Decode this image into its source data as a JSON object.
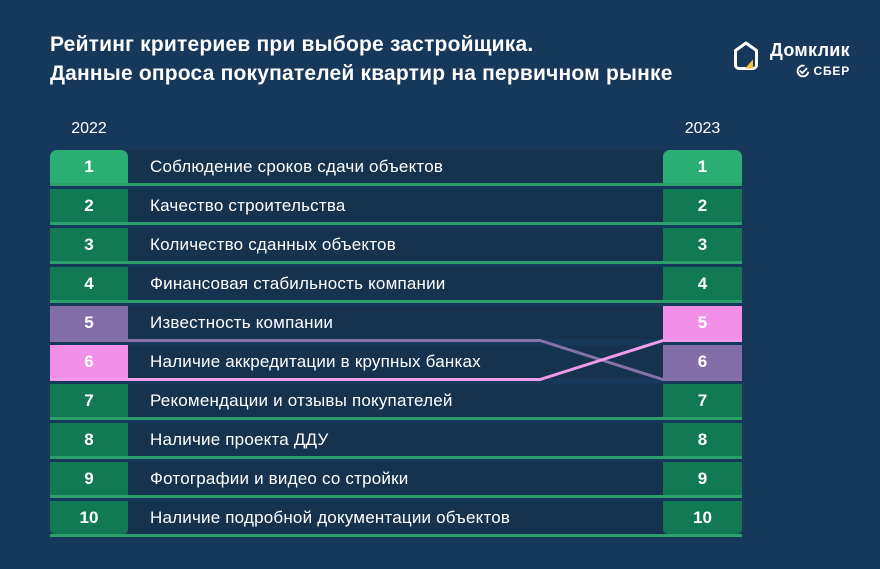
{
  "title": {
    "line1": "Рейтинг критериев при выборе застройщика.",
    "line2": "Данные опроса покупателей квартир на первичном рынке"
  },
  "logo": {
    "brand": "Домклик",
    "sub": "СБЕР"
  },
  "columns": {
    "left_year": "2022",
    "right_year": "2023"
  },
  "colors": {
    "bg": "#16395B",
    "cell": "#15334F",
    "green_bright": "#2BAE73",
    "green": "#117A54",
    "green_line": "#2CA06C",
    "purple": "#826DA9",
    "purple_line": "#8672A9",
    "pink": "#F28FE9",
    "pink_line": "#F19BEC",
    "text": "#FFFFFF",
    "accent_yellow": "#F5C242"
  },
  "rows": [
    {
      "left_rank": "1",
      "label": "Соблюдение сроков сдачи объектов",
      "right_rank": "1",
      "left_style": "bright",
      "right_style": "bright",
      "connector": "green"
    },
    {
      "left_rank": "2",
      "label": "Качество строительства",
      "right_rank": "2",
      "left_style": "green",
      "right_style": "green",
      "connector": "green"
    },
    {
      "left_rank": "3",
      "label": "Количество сданных объектов",
      "right_rank": "3",
      "left_style": "green",
      "right_style": "green",
      "connector": "green"
    },
    {
      "left_rank": "4",
      "label": "Финансовая стабильность компании",
      "right_rank": "4",
      "left_style": "green",
      "right_style": "green",
      "connector": "green"
    },
    {
      "left_rank": "5",
      "label": "Известность компании",
      "right_rank": "5",
      "left_style": "purple",
      "right_style": "pink",
      "connector": "cross"
    },
    {
      "left_rank": "6",
      "label": "Наличие аккредитации в крупных банках",
      "right_rank": "6",
      "left_style": "pink",
      "right_style": "purple",
      "connector": "cross"
    },
    {
      "left_rank": "7",
      "label": "Рекомендации и отзывы покупателей",
      "right_rank": "7",
      "left_style": "green",
      "right_style": "green",
      "connector": "green"
    },
    {
      "left_rank": "8",
      "label": "Наличие проекта ДДУ",
      "right_rank": "8",
      "left_style": "green",
      "right_style": "green",
      "connector": "green"
    },
    {
      "left_rank": "9",
      "label": "Фотографии и видео со стройки",
      "right_rank": "9",
      "left_style": "green",
      "right_style": "green",
      "connector": "green"
    },
    {
      "left_rank": "10",
      "label": "Наличие подробной документации объектов",
      "right_rank": "10",
      "left_style": "green",
      "right_style": "green",
      "connector": "green"
    }
  ],
  "chart_data": {
    "type": "table",
    "title": "Рейтинг критериев при выборе застройщика. Данные опроса покупателей квартир на первичном рынке",
    "years": [
      "2022",
      "2023"
    ],
    "items": [
      {
        "label": "Соблюдение сроков сдачи объектов",
        "rank_2022": 1,
        "rank_2023": 1
      },
      {
        "label": "Качество строительства",
        "rank_2022": 2,
        "rank_2023": 2
      },
      {
        "label": "Количество сданных объектов",
        "rank_2022": 3,
        "rank_2023": 3
      },
      {
        "label": "Финансовая стабильность компании",
        "rank_2022": 4,
        "rank_2023": 4
      },
      {
        "label": "Известность компании",
        "rank_2022": 5,
        "rank_2023": 6
      },
      {
        "label": "Наличие аккредитации в крупных банках",
        "rank_2022": 6,
        "rank_2023": 5
      },
      {
        "label": "Рекомендации и отзывы покупателей",
        "rank_2022": 7,
        "rank_2023": 7
      },
      {
        "label": "Наличие проекта ДДУ",
        "rank_2022": 8,
        "rank_2023": 8
      },
      {
        "label": "Фотографии и видео со стройки",
        "rank_2022": 9,
        "rank_2023": 9
      },
      {
        "label": "Наличие подробной документации объектов",
        "rank_2022": 10,
        "rank_2023": 10
      }
    ],
    "annotations": [
      "Rank changes 5↔6 are highlighted: item dropping 5→6 in purple, item rising 6→5 in pink; crossing lines connect 2022 rows to 2023 rank badges.",
      "All unchanged ranks connected by straight green lines; rank 1 badges in bright green."
    ],
    "legend_position": "none",
    "grid": false
  }
}
